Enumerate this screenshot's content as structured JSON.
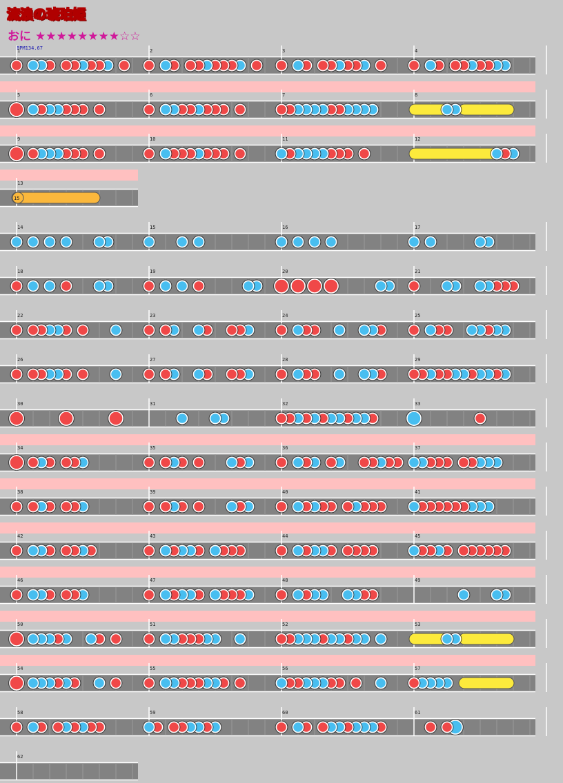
{
  "song": {
    "title": "流浪の琥珀姫",
    "difficulty_label": "おに",
    "stars_total": 10,
    "stars_filled": 8,
    "bpm_text": "BPM134.67"
  },
  "colors": {
    "background": "#c8c8c8",
    "lane": "#828282",
    "gogo_band": "#ffc0c0",
    "don": "#f04848",
    "ka": "#48bef0",
    "roll": "#fcea3c",
    "balloon": "#fbb83c",
    "star": "#d0189a"
  },
  "note_legend": {
    "d": "don (red)",
    "k": "ka (blue)",
    "D": "big don",
    "K": "big ka",
    "r": "drumroll",
    "b": "balloon"
  },
  "rows": [
    {
      "gogo": false,
      "measures": [
        {
          "num": "1",
          "notes": "d_kkd_ddkddk_d_"
        },
        {
          "num": "2",
          "notes": "d_kd_ddkdddk_d_"
        },
        {
          "num": "3",
          "notes": "d_kd_ddkddk_d__"
        },
        {
          "num": "4",
          "notes": "d_kd_ddkddkk___"
        }
      ]
    },
    {
      "gogo": true,
      "measures": [
        {
          "num": "5",
          "notes": "D_kdkkddd_d_____"
        },
        {
          "num": "6",
          "notes": "d_kkddkddd_d____"
        },
        {
          "num": "7",
          "notes": "ddkkkkddkkkk____"
        },
        {
          "num": "8",
          "notes": "rrrrkkrrrrrr____"
        }
      ]
    },
    {
      "gogo": true,
      "measures": [
        {
          "num": "9",
          "notes": "D_dkkkddd_d_____"
        },
        {
          "num": "10",
          "notes": "d_kdddkddd_d____"
        },
        {
          "num": "11",
          "notes": "kdkkkkddd_d_____"
        },
        {
          "num": "12",
          "notes": "rrrrrrrrrrkdk___"
        }
      ]
    },
    {
      "gogo": true,
      "measures": [
        {
          "num": "13",
          "notes": "bbbbbbbbbb______",
          "balloon": "15"
        }
      ]
    },
    {
      "gogo": false,
      "measures": [
        {
          "num": "14",
          "notes": "k_k_k_k___kk____"
        },
        {
          "num": "15",
          "notes": "k___k_k_________"
        },
        {
          "num": "16",
          "notes": "k_k_k_k_________"
        },
        {
          "num": "17",
          "notes": "k_k_____kk______"
        }
      ]
    },
    {
      "gogo": false,
      "measures": [
        {
          "num": "18",
          "notes": "d_k_k_d___kk____"
        },
        {
          "num": "19",
          "notes": "d_k_k_d_____kk__"
        },
        {
          "num": "20",
          "notes": "D_D_D_D_____kk__"
        },
        {
          "num": "21",
          "notes": "d___kk__kkddd___"
        }
      ]
    },
    {
      "gogo": false,
      "measures": [
        {
          "num": "22",
          "notes": "d_ddkkd_d___k___"
        },
        {
          "num": "23",
          "notes": "d_dk__kd__ddk___"
        },
        {
          "num": "24",
          "notes": "d_kdd__k__kkd___"
        },
        {
          "num": "25",
          "notes": "d_kdd__kkdkk____"
        }
      ]
    },
    {
      "gogo": false,
      "measures": [
        {
          "num": "26",
          "notes": "d_ddkkd_d___k___"
        },
        {
          "num": "27",
          "notes": "d_dk__kd__ddk___"
        },
        {
          "num": "28",
          "notes": "d_kdd__k__kkd___"
        },
        {
          "num": "29",
          "notes": "ddkddkkdkkdk____"
        }
      ]
    },
    {
      "gogo": false,
      "measures": [
        {
          "num": "30",
          "notes": "D_____D_____D___"
        },
        {
          "num": "31",
          "notes": "____k___kk______"
        },
        {
          "num": "32",
          "notes": "ddkdkdkkdkkd____"
        },
        {
          "num": "33",
          "notes": "K_______d_______"
        }
      ]
    },
    {
      "gogo": true,
      "measures": [
        {
          "num": "34",
          "notes": "D_dkd_ddk_______"
        },
        {
          "num": "35",
          "notes": "d_dkd_d___kdk___"
        },
        {
          "num": "36",
          "notes": "d_kdk_dk__ddkdd_"
        },
        {
          "num": "37",
          "notes": "kkddd_ddkkk_____"
        }
      ]
    },
    {
      "gogo": true,
      "measures": [
        {
          "num": "38",
          "notes": "d_dkd_ddk_______"
        },
        {
          "num": "39",
          "notes": "d_dkd_d___kdk___"
        },
        {
          "num": "40",
          "notes": "d_kdkdd_dkddd___"
        },
        {
          "num": "41",
          "notes": "kddddddkkk______"
        }
      ]
    },
    {
      "gogo": true,
      "measures": [
        {
          "num": "42",
          "notes": "d_kkd_ddkd______"
        },
        {
          "num": "43",
          "notes": "d_kdkkd_kddd____"
        },
        {
          "num": "44",
          "notes": "d_kdkkd_dddd____"
        },
        {
          "num": "45",
          "notes": "kddkd_dddddd____"
        }
      ]
    },
    {
      "gogo": true,
      "measures": [
        {
          "num": "46",
          "notes": "d_kkd_ddk_______"
        },
        {
          "num": "47",
          "notes": "d_kdkkd_kdddk___"
        },
        {
          "num": "48",
          "notes": "d_kdkk__kkdd____"
        },
        {
          "num": "49",
          "notes": "______k___kk____"
        }
      ]
    },
    {
      "gogo": true,
      "measures": [
        {
          "num": "50",
          "notes": "D_kkkdk__kd_d___"
        },
        {
          "num": "51",
          "notes": "d_kkdddkk__k____"
        },
        {
          "num": "52",
          "notes": "ddkkkdkkdkk_k___"
        },
        {
          "num": "53",
          "notes": "rrrrkkrrrrrr____"
        }
      ]
    },
    {
      "gogo": true,
      "measures": [
        {
          "num": "54",
          "notes": "D_kkkdkd__k_d___"
        },
        {
          "num": "55",
          "notes": "d_kkdddkkd_d____"
        },
        {
          "num": "56",
          "notes": "kddkkkdd_d__k___"
        },
        {
          "num": "57",
          "notes": "dkkkk_rrrrrr____"
        }
      ]
    },
    {
      "gogo": false,
      "measures": [
        {
          "num": "58",
          "notes": "d_kd_dkdkdd_____"
        },
        {
          "num": "59",
          "notes": "kd_ddkkdk_______"
        },
        {
          "num": "60",
          "notes": "d_kd_dkkdkkkd___"
        },
        {
          "num": "61",
          "notes": "__d_dK__________"
        }
      ]
    },
    {
      "gogo": false,
      "measures": [
        {
          "num": "62",
          "notes": ""
        }
      ]
    }
  ]
}
